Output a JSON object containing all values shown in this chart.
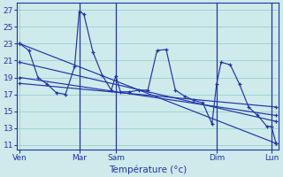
{
  "xlabel": "Température (°c)",
  "bg_color": "#ceeaea",
  "grid_color": "#9ecece",
  "line_color": "#2233aa",
  "yticks": [
    11,
    13,
    15,
    17,
    19,
    21,
    23,
    25,
    27
  ],
  "ylim": [
    10.5,
    27.8
  ],
  "xlim": [
    -0.3,
    28.3
  ],
  "day_vlines": [
    6.5,
    10.5,
    21.5,
    27.5
  ],
  "day_tick_positions": [
    0,
    6.5,
    10.5,
    21.5,
    27.5
  ],
  "day_tick_labels": [
    "Ven",
    "Mar",
    "Sam",
    "Dim",
    "Lun"
  ],
  "temp_x": [
    0,
    1,
    2,
    3,
    4,
    5,
    6,
    6.5,
    7,
    8,
    9,
    10,
    10.5,
    11,
    12,
    13,
    14,
    15,
    16,
    17,
    18,
    19,
    20,
    21,
    21.5,
    22,
    23,
    24,
    25,
    26,
    27,
    27.5,
    28
  ],
  "temp_y": [
    23,
    22.2,
    19,
    18.2,
    17.2,
    17.0,
    20.3,
    26.8,
    26.5,
    22.0,
    19.3,
    17.5,
    19.2,
    17.3,
    17.3,
    17.5,
    17.5,
    22.2,
    22.3,
    17.5,
    16.8,
    16.3,
    16.0,
    13.5,
    18.2,
    20.8,
    20.5,
    18.2,
    15.5,
    14.5,
    13.2,
    13.2,
    11.2
  ],
  "line1_x": [
    0,
    28
  ],
  "line1_y": [
    23.0,
    11.2
  ],
  "line2_x": [
    0,
    28
  ],
  "line2_y": [
    20.8,
    13.8
  ],
  "line3_x": [
    0,
    28
  ],
  "line3_y": [
    19.0,
    14.5
  ],
  "line4_x": [
    0,
    28
  ],
  "line4_y": [
    18.3,
    15.5
  ]
}
